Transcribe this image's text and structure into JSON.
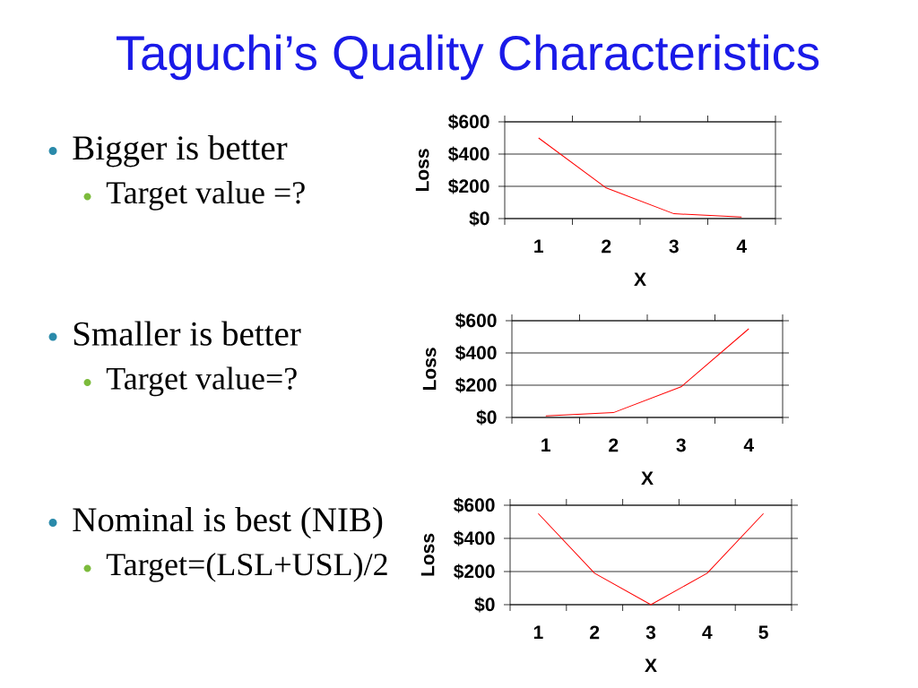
{
  "chart_data": [
    {
      "type": "other",
      "title": "Taguchi’s Quality Characteristics",
      "annotations": [
        "Bigger is better",
        "Target value =?",
        "Smaller is better",
        "Target value=?",
        "Nominal is best (NIB)",
        "Target=(LSL+USL)/2"
      ]
    },
    {
      "type": "line",
      "categories": [
        "1",
        "2",
        "3",
        "4"
      ],
      "values": [
        500,
        190,
        30,
        10
      ],
      "color": "#ff0000",
      "xlabel": "X",
      "ylabel": "Loss",
      "ylim": [
        0,
        600
      ],
      "yticks": [
        {
          "value": 0,
          "label": "$0"
        },
        {
          "value": 200,
          "label": "$200"
        },
        {
          "value": 400,
          "label": "$400"
        },
        {
          "value": 600,
          "label": "$600"
        }
      ],
      "grid": "y"
    },
    {
      "type": "line",
      "categories": [
        "1",
        "2",
        "3",
        "4"
      ],
      "values": [
        10,
        30,
        190,
        550
      ],
      "color": "#ff0000",
      "xlabel": "X",
      "ylabel": "Loss",
      "ylim": [
        0,
        600
      ],
      "yticks": [
        {
          "value": 0,
          "label": "$0"
        },
        {
          "value": 200,
          "label": "$200"
        },
        {
          "value": 400,
          "label": "$400"
        },
        {
          "value": 600,
          "label": "$600"
        }
      ],
      "grid": "y"
    },
    {
      "type": "line",
      "categories": [
        "1",
        "2",
        "3",
        "4",
        "5"
      ],
      "values": [
        550,
        190,
        0,
        190,
        550
      ],
      "color": "#ff0000",
      "xlabel": "X",
      "ylabel": "Loss",
      "ylim": [
        0,
        600
      ],
      "yticks": [
        {
          "value": 0,
          "label": "$0"
        },
        {
          "value": 200,
          "label": "$200"
        },
        {
          "value": 400,
          "label": "$400"
        },
        {
          "value": 600,
          "label": "$600"
        }
      ],
      "grid": "y"
    }
  ]
}
